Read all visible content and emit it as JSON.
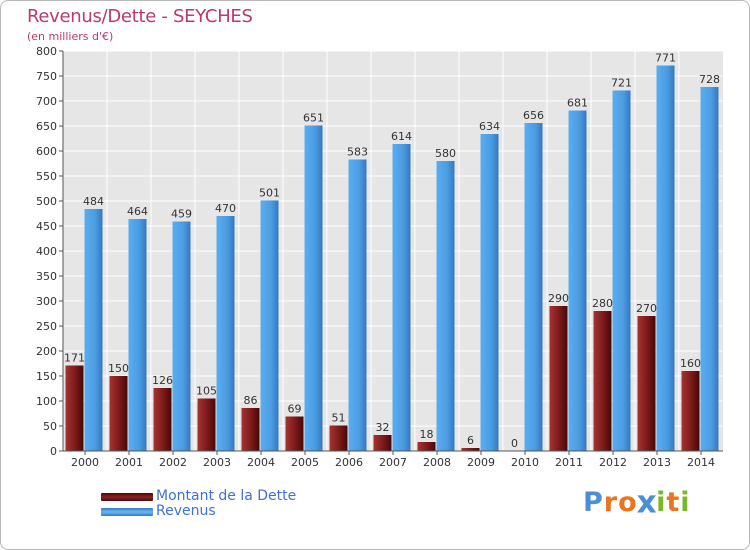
{
  "title": "Revenus/Dette - SEYCHES",
  "subtitle": "(en milliers d'€)",
  "colors": {
    "dette": "#7a1a1a",
    "revenus": "#4b9be0",
    "title": "#b83a6e",
    "legend_text": "#3f6fd8"
  },
  "legend": [
    {
      "label": "Montant de la Dette",
      "color": "#6e1111"
    },
    {
      "label": "Revenus",
      "color": "#4b9be0"
    }
  ],
  "logo": {
    "text": "Proxiti",
    "letter_colors": [
      "#4a8fd6",
      "#e8761e",
      "#e8761e",
      "#4a8fd6",
      "#79b829",
      "#e8761e",
      "#79b829"
    ]
  },
  "chart_data": {
    "type": "bar",
    "title": "Revenus/Dette - SEYCHES",
    "ylabel": "(en milliers d'€)",
    "xlabel": "",
    "ylim": [
      0,
      800
    ],
    "yticks": [
      0,
      50,
      100,
      150,
      200,
      250,
      300,
      350,
      400,
      450,
      500,
      550,
      600,
      650,
      700,
      750,
      800
    ],
    "grid": true,
    "categories": [
      "2000",
      "2001",
      "2002",
      "2003",
      "2004",
      "2005",
      "2006",
      "2007",
      "2008",
      "2009",
      "2010",
      "2011",
      "2012",
      "2013",
      "2014"
    ],
    "series": [
      {
        "name": "Montant de la Dette",
        "values": [
          171,
          150,
          126,
          105,
          86,
          69,
          51,
          32,
          18,
          6,
          0,
          290,
          280,
          270,
          160
        ]
      },
      {
        "name": "Revenus",
        "values": [
          484,
          464,
          459,
          470,
          501,
          651,
          583,
          614,
          580,
          634,
          656,
          681,
          721,
          771,
          728
        ]
      }
    ]
  }
}
